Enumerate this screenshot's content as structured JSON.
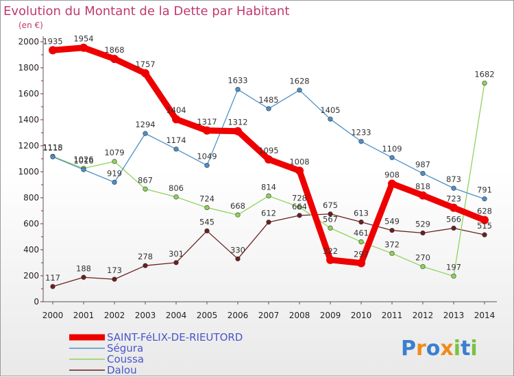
{
  "chart_data": {
    "type": "line",
    "title": "Evolution du Montant de la Dette par Habitant",
    "subtitle": "(en €)",
    "xlabel": "",
    "ylabel": "",
    "ylim": [
      0,
      2000
    ],
    "yticks": [
      0,
      200,
      400,
      600,
      800,
      1000,
      1200,
      1400,
      1600,
      1800,
      2000
    ],
    "x": [
      2000,
      2001,
      2002,
      2003,
      2004,
      2005,
      2006,
      2007,
      2008,
      2009,
      2010,
      2011,
      2012,
      2013,
      2014
    ],
    "grid": false,
    "legend_position": "bottom-left",
    "series": [
      {
        "name": "Dalou",
        "color": "#6b1f1f",
        "values": [
          117,
          188,
          173,
          278,
          301,
          545,
          330,
          612,
          664,
          675,
          613,
          549,
          529,
          566,
          515
        ]
      },
      {
        "name": "Coussa",
        "color": "#8fd35a",
        "values": [
          1118,
          1026,
          1079,
          867,
          806,
          724,
          668,
          814,
          728,
          567,
          461,
          372,
          270,
          197,
          1682
        ]
      },
      {
        "name": "Ségura",
        "color": "#4c8fc9",
        "values": [
          1115,
          1016,
          919,
          1294,
          1174,
          1049,
          1633,
          1485,
          1628,
          1405,
          1233,
          1109,
          987,
          873,
          791
        ]
      },
      {
        "name": "SAINT-FéLIX-DE-RIEUTORD",
        "color": "#ee0000",
        "values": [
          1935,
          1954,
          1868,
          1757,
          1404,
          1317,
          1312,
          1095,
          1008,
          322,
          297,
          908,
          818,
          723,
          628
        ]
      }
    ]
  },
  "legend": [
    {
      "label": "SAINT-FéLIX-DE-RIEUTORD",
      "color": "#ee0000"
    },
    {
      "label": "Ségura",
      "color": "#4c8fc9"
    },
    {
      "label": "Coussa",
      "color": "#8fd35a"
    },
    {
      "label": "Dalou",
      "color": "#6b1f1f"
    }
  ],
  "brand": {
    "letters": [
      "P",
      "r",
      "o",
      "x",
      "i",
      "t",
      "i"
    ],
    "colors": [
      "#3a7fd0",
      "#f08a1c",
      "#3a7fd0",
      "#f08a1c",
      "#7ac142",
      "#3a7fd0",
      "#7ac142"
    ]
  }
}
